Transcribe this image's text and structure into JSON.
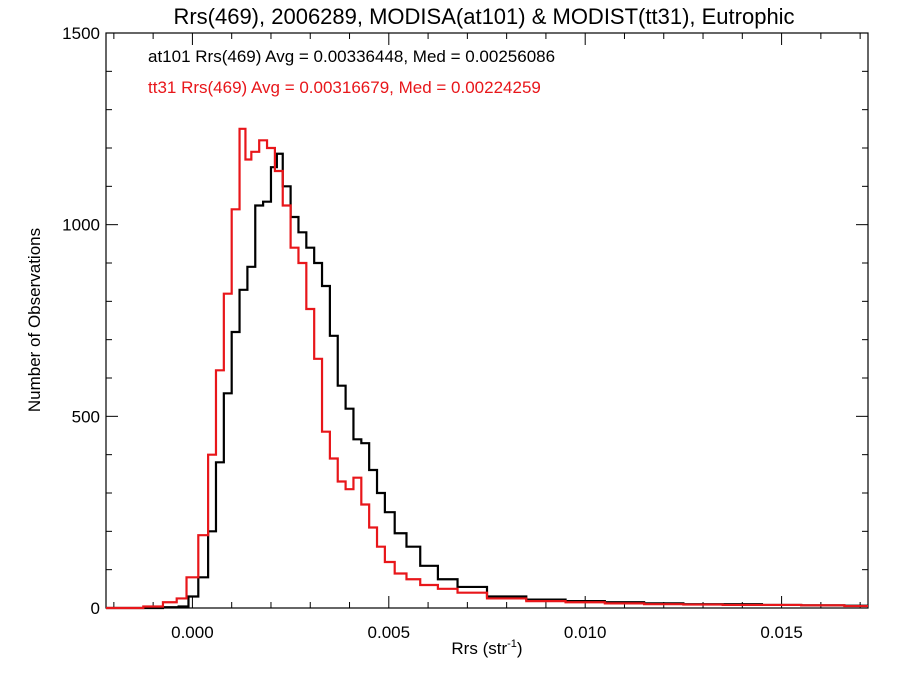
{
  "chart_data": {
    "type": "line",
    "step": true,
    "title": "Rrs(469), 2006289, MODISA(at101) & MODIST(tt31), Eutrophic",
    "xlabel": "Rrs (str",
    "xlabel_sup": "-1",
    "xlabel_end": ")",
    "ylabel": "Number of Observations",
    "xlim": [
      -0.0022,
      0.0172
    ],
    "ylim": [
      0,
      1500
    ],
    "xticks": [
      0.0,
      0.005,
      0.01,
      0.015
    ],
    "xtick_labels": [
      "0.000",
      "0.005",
      "0.010",
      "0.015"
    ],
    "yticks": [
      0,
      500,
      1000,
      1500
    ],
    "ytick_labels": [
      "0",
      "500",
      "1000",
      "1500"
    ],
    "grid": false,
    "annotations": [
      {
        "text": "at101 Rrs(469) Avg = 0.00336448, Med = 0.00256086",
        "color": "#000000"
      },
      {
        "text": "tt31 Rrs(469) Avg = 0.00316679, Med = 0.00224259",
        "color": "#e8161a"
      }
    ],
    "series": [
      {
        "color": "#000000",
        "points": [
          [
            -0.0022,
            0
          ],
          [
            -0.001,
            0
          ],
          [
            -0.0005,
            2
          ],
          [
            -0.0002,
            4
          ],
          [
            0.0,
            30
          ],
          [
            0.0003,
            80
          ],
          [
            0.0005,
            200
          ],
          [
            0.0007,
            380
          ],
          [
            0.0009,
            560
          ],
          [
            0.0011,
            720
          ],
          [
            0.0013,
            830
          ],
          [
            0.0015,
            890
          ],
          [
            0.0017,
            1050
          ],
          [
            0.0019,
            1060
          ],
          [
            0.0021,
            1150
          ],
          [
            0.0022,
            1185
          ],
          [
            0.0024,
            1100
          ],
          [
            0.0026,
            1020
          ],
          [
            0.0028,
            980
          ],
          [
            0.003,
            940
          ],
          [
            0.0032,
            900
          ],
          [
            0.0034,
            840
          ],
          [
            0.0036,
            710
          ],
          [
            0.0038,
            580
          ],
          [
            0.004,
            520
          ],
          [
            0.0042,
            440
          ],
          [
            0.0044,
            430
          ],
          [
            0.0046,
            360
          ],
          [
            0.0048,
            300
          ],
          [
            0.005,
            250
          ],
          [
            0.0053,
            195
          ],
          [
            0.0056,
            160
          ],
          [
            0.006,
            110
          ],
          [
            0.0065,
            75
          ],
          [
            0.007,
            55
          ],
          [
            0.008,
            30
          ],
          [
            0.009,
            22
          ],
          [
            0.01,
            18
          ],
          [
            0.011,
            15
          ],
          [
            0.012,
            12
          ],
          [
            0.013,
            10
          ],
          [
            0.014,
            10
          ],
          [
            0.015,
            8
          ],
          [
            0.016,
            7
          ],
          [
            0.0172,
            6
          ]
        ]
      },
      {
        "color": "#e8161a",
        "points": [
          [
            -0.0022,
            0
          ],
          [
            -0.0015,
            0
          ],
          [
            -0.001,
            4
          ],
          [
            -0.0005,
            15
          ],
          [
            -0.0003,
            25
          ],
          [
            0.0,
            80
          ],
          [
            0.0003,
            190
          ],
          [
            0.0005,
            400
          ],
          [
            0.0007,
            620
          ],
          [
            0.0009,
            820
          ],
          [
            0.0011,
            1040
          ],
          [
            0.0013,
            1250
          ],
          [
            0.0014,
            1170
          ],
          [
            0.0016,
            1190
          ],
          [
            0.0018,
            1220
          ],
          [
            0.002,
            1200
          ],
          [
            0.0022,
            1140
          ],
          [
            0.0024,
            1050
          ],
          [
            0.0026,
            940
          ],
          [
            0.0028,
            900
          ],
          [
            0.003,
            780
          ],
          [
            0.0032,
            650
          ],
          [
            0.0034,
            460
          ],
          [
            0.0036,
            390
          ],
          [
            0.0038,
            330
          ],
          [
            0.004,
            310
          ],
          [
            0.0042,
            340
          ],
          [
            0.0044,
            270
          ],
          [
            0.0046,
            210
          ],
          [
            0.0048,
            160
          ],
          [
            0.005,
            120
          ],
          [
            0.0053,
            90
          ],
          [
            0.0056,
            75
          ],
          [
            0.006,
            60
          ],
          [
            0.0065,
            50
          ],
          [
            0.007,
            40
          ],
          [
            0.008,
            25
          ],
          [
            0.009,
            18
          ],
          [
            0.01,
            15
          ],
          [
            0.011,
            12
          ],
          [
            0.012,
            10
          ],
          [
            0.013,
            9
          ],
          [
            0.014,
            8
          ],
          [
            0.015,
            8
          ],
          [
            0.016,
            7
          ],
          [
            0.0172,
            5
          ]
        ]
      }
    ]
  }
}
